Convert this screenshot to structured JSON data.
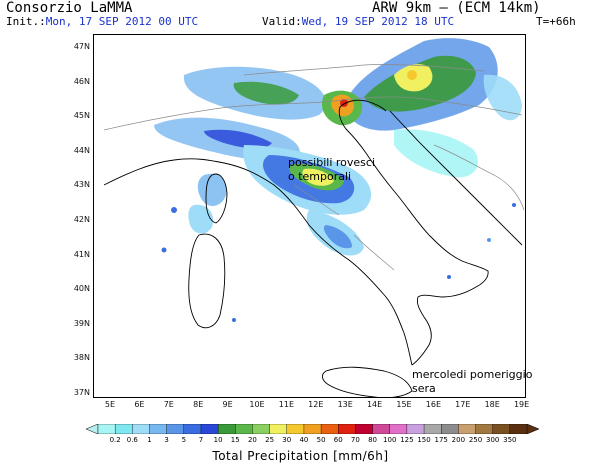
{
  "header": {
    "org": "Consorzio LaMMA",
    "model": "ARW 9km — (ECM 14km)",
    "init_label": "Init.:",
    "init_value": "Mon, 17 SEP 2012  00 UTC",
    "valid_label": "Valid:",
    "valid_value": "Wed, 19 SEP 2012  18 UTC",
    "lead_time": "T=+66h"
  },
  "map": {
    "lat_ticks": [
      "47N",
      "46N",
      "45N",
      "44N",
      "43N",
      "42N",
      "41N",
      "40N",
      "39N",
      "38N",
      "37N"
    ],
    "lon_ticks": [
      "5E",
      "6E",
      "7E",
      "8E",
      "9E",
      "10E",
      "11E",
      "12E",
      "13E",
      "14E",
      "15E",
      "16E",
      "17E",
      "18E",
      "19E"
    ],
    "annotations": {
      "storms_line1": "possibili rovesci",
      "storms_line2": "o temporali",
      "time_line1": "mercoledi pomeriggio",
      "time_line2": "sera"
    }
  },
  "colorbar": {
    "title": "Total Precipitation [mm/6h]",
    "labels": [
      "0.2",
      "0.6",
      "1",
      "3",
      "5",
      "7",
      "10",
      "15",
      "20",
      "25",
      "30",
      "40",
      "50",
      "60",
      "70",
      "80",
      "100",
      "125",
      "150",
      "175",
      "200",
      "250",
      "300",
      "350"
    ],
    "colors": [
      "#a8f5f5",
      "#7ee8f0",
      "#9edcf8",
      "#78b8f0",
      "#5a96e8",
      "#3a6ee0",
      "#2a48d8",
      "#3a9a3a",
      "#5ab84a",
      "#8ad060",
      "#f0f060",
      "#f5c830",
      "#f0a020",
      "#e86010",
      "#e02010",
      "#c00030",
      "#d04898",
      "#e070c8",
      "#c8a0e0",
      "#a8a8a8",
      "#8c8c8c",
      "#c8a070",
      "#a07840",
      "#7a5020",
      "#5a3010"
    ],
    "arrow_low": "#b8f0f0",
    "arrow_high": "#5a3010"
  },
  "colors": {
    "header_blue": "#1a33cc",
    "coastline": "#000000",
    "border_gray": "#8a8a8a"
  }
}
